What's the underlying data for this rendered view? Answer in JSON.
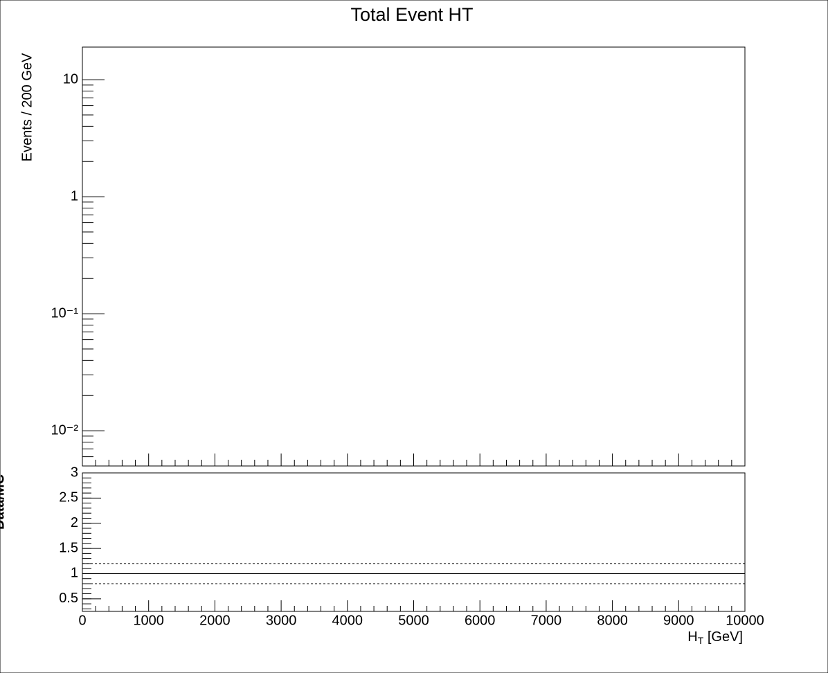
{
  "chart_data": [
    {
      "type": "line",
      "title": "Total Event HT",
      "ylabel": "Events / 200 GeV",
      "series": [],
      "xlim": [
        0,
        10000
      ],
      "xticks": [
        0,
        1000,
        2000,
        3000,
        4000,
        5000,
        6000,
        7000,
        8000,
        9000,
        10000
      ],
      "xtick_labels": false,
      "ylim": [
        0.005,
        19
      ],
      "yscale": "log",
      "yticks": [
        {
          "value": 0.01,
          "label": "10⁻²"
        },
        {
          "value": 0.1,
          "label": "10⁻¹"
        },
        1,
        10
      ]
    },
    {
      "type": "line",
      "ylabel": "Data/MC",
      "xlabel_parts": [
        "H",
        "T",
        " [GeV]"
      ],
      "series": [],
      "xlim": [
        0,
        10000
      ],
      "xticks": [
        0,
        1000,
        2000,
        3000,
        4000,
        5000,
        6000,
        7000,
        8000,
        9000,
        10000
      ],
      "xtick_labels": true,
      "ylim": [
        0.25,
        3
      ],
      "yticks": [
        0.5,
        1,
        1.5,
        2,
        2.5,
        3
      ],
      "reference_lines": [
        {
          "value": 1,
          "style": "solid"
        },
        {
          "value": 1.2,
          "style": "dashed"
        },
        {
          "value": 0.8,
          "style": "dashed"
        }
      ]
    }
  ]
}
